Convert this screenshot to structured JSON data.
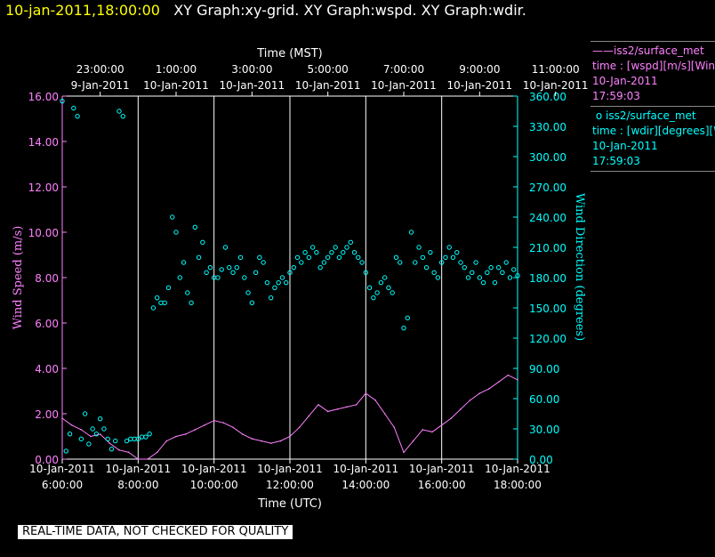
{
  "header": {
    "datetime": "10-jan-2011,18:00:00",
    "graphs": "XY Graph:xy-grid.  XY Graph:wspd.  XY Graph:wdir."
  },
  "legend": [
    {
      "name_line": "iss2/surface_met",
      "var_line": "time : [wspd][m/s][Wind",
      "date": "10-Jan-2011",
      "time": "17:59:03",
      "color": "#ff80ff",
      "symbol": "line"
    },
    {
      "name_line": "iss2/surface_met",
      "var_line": "time : [wdir][degrees][W",
      "date": "10-Jan-2011",
      "time": "17:59:03",
      "color": "#00ffff",
      "symbol": "circle"
    }
  ],
  "footer": "REAL-TIME DATA, NOT CHECKED FOR QUALITY",
  "chart_data": {
    "type": "scatter",
    "top_axis": {
      "title": "Time (MST)",
      "ticks": [
        {
          "time": "23:00:00",
          "date": "9-Jan-2011"
        },
        {
          "time": "1:00:00",
          "date": "10-Jan-2011"
        },
        {
          "time": "3:00:00",
          "date": "10-Jan-2011"
        },
        {
          "time": "5:00:00",
          "date": "10-Jan-2011"
        },
        {
          "time": "7:00:00",
          "date": "10-Jan-2011"
        },
        {
          "time": "9:00:00",
          "date": "10-Jan-2011"
        },
        {
          "time": "11:00:00",
          "date": "10-Jan-2011"
        }
      ]
    },
    "bottom_axis": {
      "title": "Time (UTC)",
      "ticks": [
        {
          "date": "10-Jan-2011",
          "time": "6:00:00"
        },
        {
          "date": "10-Jan-2011",
          "time": "8:00:00"
        },
        {
          "date": "10-Jan-2011",
          "time": "10:00:00"
        },
        {
          "date": "10-Jan-2011",
          "time": "12:00:00"
        },
        {
          "date": "10-Jan-2011",
          "time": "14:00:00"
        },
        {
          "date": "10-Jan-2011",
          "time": "16:00:00"
        },
        {
          "date": "10-Jan-2011",
          "time": "18:00:00"
        }
      ],
      "xlim_utc_hours": [
        6,
        18
      ]
    },
    "left_axis": {
      "title": "Wind Speed (m/s)",
      "ylim": [
        0,
        16
      ],
      "ticks": [
        "0.00",
        "2.00",
        "4.00",
        "6.00",
        "8.00",
        "10.00",
        "12.00",
        "14.00",
        "16.00"
      ],
      "color": "#ff80ff"
    },
    "right_axis": {
      "title": "Wind Direction (degrees)",
      "ylim": [
        0,
        360
      ],
      "ticks": [
        "0.00",
        "30.00",
        "60.00",
        "90.00",
        "120.00",
        "150.00",
        "180.00",
        "210.00",
        "240.00",
        "270.00",
        "300.00",
        "330.00",
        "360.00"
      ],
      "color": "#00ffff"
    },
    "grid": "vertical lines at bottom-axis ticks",
    "series": [
      {
        "name": "iss2/surface_met wspd",
        "axis": "left",
        "style": "line",
        "color": "#ff80ff",
        "x_utc_hours": [
          6.0,
          6.25,
          6.5,
          6.75,
          7.0,
          7.25,
          7.5,
          7.75,
          8.0,
          8.25,
          8.5,
          8.75,
          9.0,
          9.25,
          9.5,
          9.75,
          10.0,
          10.25,
          10.5,
          10.75,
          11.0,
          11.25,
          11.5,
          11.75,
          12.0,
          12.25,
          12.5,
          12.75,
          13.0,
          13.25,
          13.5,
          13.75,
          14.0,
          14.25,
          14.5,
          14.75,
          15.0,
          15.25,
          15.5,
          15.75,
          16.0,
          16.25,
          16.5,
          16.75,
          17.0,
          17.25,
          17.5,
          17.75,
          18.0
        ],
        "y": [
          1.8,
          1.5,
          1.3,
          1.0,
          1.1,
          0.7,
          0.4,
          0.3,
          0.0,
          0.0,
          0.3,
          0.8,
          1.0,
          1.1,
          1.3,
          1.5,
          1.7,
          1.6,
          1.4,
          1.1,
          0.9,
          0.8,
          0.7,
          0.8,
          1.0,
          1.4,
          1.9,
          2.4,
          2.1,
          2.2,
          2.3,
          2.4,
          2.9,
          2.6,
          2.0,
          1.4,
          0.3,
          0.8,
          1.3,
          1.2,
          1.5,
          1.8,
          2.2,
          2.6,
          2.9,
          3.1,
          3.4,
          3.7,
          3.5
        ]
      },
      {
        "name": "iss2/surface_met wdir",
        "axis": "right",
        "style": "markers",
        "marker": "open circle",
        "color": "#00ffff",
        "x_utc_hours": [
          6.0,
          6.1,
          6.2,
          6.3,
          6.4,
          6.5,
          6.6,
          6.7,
          6.8,
          6.9,
          7.0,
          7.1,
          7.2,
          7.3,
          7.4,
          7.5,
          7.6,
          7.7,
          7.8,
          7.9,
          8.0,
          8.1,
          8.2,
          8.3,
          8.4,
          8.5,
          8.6,
          8.7,
          8.8,
          8.9,
          9.0,
          9.1,
          9.2,
          9.3,
          9.4,
          9.5,
          9.6,
          9.7,
          9.8,
          9.9,
          10.0,
          10.1,
          10.2,
          10.3,
          10.4,
          10.5,
          10.6,
          10.7,
          10.8,
          10.9,
          11.0,
          11.1,
          11.2,
          11.3,
          11.4,
          11.5,
          11.6,
          11.7,
          11.8,
          11.9,
          12.0,
          12.1,
          12.2,
          12.3,
          12.4,
          12.5,
          12.6,
          12.7,
          12.8,
          12.9,
          13.0,
          13.1,
          13.2,
          13.3,
          13.4,
          13.5,
          13.6,
          13.7,
          13.8,
          13.9,
          14.0,
          14.1,
          14.2,
          14.3,
          14.4,
          14.5,
          14.6,
          14.7,
          14.8,
          14.9,
          15.0,
          15.1,
          15.2,
          15.3,
          15.4,
          15.5,
          15.6,
          15.7,
          15.8,
          15.9,
          16.0,
          16.1,
          16.2,
          16.3,
          16.4,
          16.5,
          16.6,
          16.7,
          16.8,
          16.9,
          17.0,
          17.1,
          17.2,
          17.3,
          17.4,
          17.5,
          17.6,
          17.7,
          17.8,
          17.9,
          18.0
        ],
        "y": [
          355,
          8,
          25,
          348,
          340,
          20,
          45,
          15,
          30,
          25,
          40,
          30,
          20,
          10,
          18,
          345,
          340,
          18,
          20,
          20,
          20,
          22,
          22,
          25,
          150,
          160,
          155,
          155,
          170,
          240,
          225,
          180,
          195,
          165,
          155,
          230,
          200,
          215,
          185,
          190,
          180,
          180,
          188,
          210,
          190,
          185,
          190,
          200,
          180,
          165,
          155,
          185,
          200,
          195,
          175,
          160,
          170,
          175,
          180,
          175,
          185,
          190,
          200,
          195,
          205,
          200,
          210,
          205,
          190,
          195,
          200,
          205,
          210,
          200,
          205,
          210,
          215,
          205,
          200,
          195,
          185,
          170,
          160,
          165,
          175,
          180,
          170,
          165,
          200,
          195,
          130,
          140,
          225,
          195,
          210,
          200,
          190,
          205,
          185,
          180,
          195,
          200,
          210,
          200,
          205,
          195,
          190,
          180,
          185,
          195,
          180,
          175,
          185,
          190,
          175,
          190,
          185,
          195,
          180,
          188,
          182
        ]
      }
    ]
  }
}
